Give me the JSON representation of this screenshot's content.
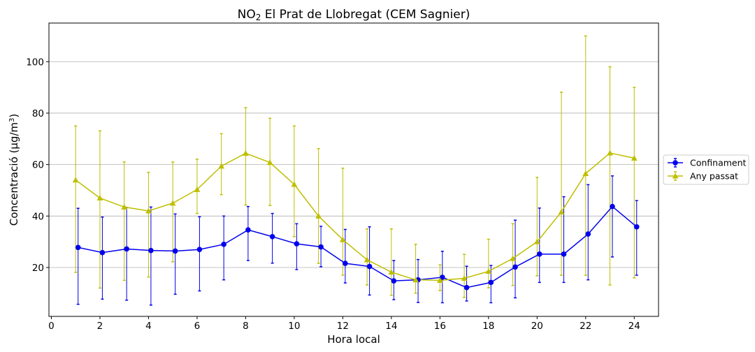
{
  "chart_data": {
    "type": "line",
    "title": {
      "main": "NO",
      "sub": "2",
      "rest": " El Prat de Llobregat (CEM Sagnier)"
    },
    "xlabel": "Hora local",
    "ylabel": {
      "main": "Concentració (µg/m",
      "sup": "3",
      "end": ")"
    },
    "xlim": [
      -0.1,
      25
    ],
    "ylim": [
      1,
      115
    ],
    "xticks": [
      0,
      2,
      4,
      6,
      8,
      10,
      12,
      14,
      16,
      18,
      20,
      22,
      24
    ],
    "yticks": [
      20,
      40,
      60,
      80,
      100
    ],
    "grid": "horizontal",
    "legend_position": "right",
    "x": [
      1,
      2,
      3,
      4,
      5,
      6,
      7,
      8,
      9,
      10,
      11,
      12,
      13,
      14,
      15,
      16,
      17,
      18,
      19,
      20,
      21,
      22,
      23,
      24
    ],
    "series": [
      {
        "name": "Confinament",
        "color": "#0000ee",
        "marker": "circle",
        "x_offset": 0.1,
        "values": [
          27.8,
          25.8,
          27.2,
          26.6,
          26.4,
          27,
          29,
          34.6,
          32,
          29.2,
          28,
          21.6,
          20.4,
          14.8,
          15.2,
          16.2,
          12.2,
          14.2,
          20.2,
          25.2,
          25.2,
          33,
          43.7,
          35.8
        ],
        "err_low": [
          5.7,
          7.7,
          7.3,
          5.4,
          9.6,
          10.9,
          15.2,
          22.7,
          21.7,
          19.2,
          20.3,
          14,
          9.3,
          7.5,
          6.4,
          6.3,
          7,
          6.3,
          8.2,
          14.2,
          14.2,
          15.2,
          24.1,
          17
        ],
        "err_high": [
          43,
          39.6,
          43.3,
          43.5,
          40.8,
          39.7,
          40,
          43.7,
          41,
          37,
          36,
          34.8,
          35.8,
          22.7,
          23.1,
          26.3,
          20.5,
          20.8,
          38.4,
          43.1,
          47.5,
          52.2,
          55.6,
          46
        ]
      },
      {
        "name": "Any passat",
        "color": "#bfbf00",
        "marker": "triangle",
        "x_offset": 0,
        "values": [
          54,
          47,
          43.5,
          42,
          45,
          50.3,
          59.4,
          64.4,
          60.8,
          52.3,
          40,
          30.8,
          23,
          18.2,
          15.2,
          15,
          15.8,
          18.5,
          23.5,
          30,
          41.6,
          56.5,
          64.5,
          62.5
        ],
        "err_low": [
          18.1,
          12,
          15,
          16.3,
          22.2,
          41,
          48.3,
          44.3,
          44.1,
          32,
          21.6,
          17,
          13.2,
          9.2,
          10,
          11,
          8.4,
          12.1,
          13,
          16.8,
          17,
          17,
          13.2,
          16
        ],
        "err_high": [
          75,
          73.1,
          61,
          57,
          61,
          62.1,
          72,
          82.1,
          78,
          75,
          66.2,
          58.6,
          35,
          35,
          29,
          21,
          25.1,
          31,
          37,
          55,
          88.1,
          110,
          98,
          90
        ]
      }
    ]
  }
}
